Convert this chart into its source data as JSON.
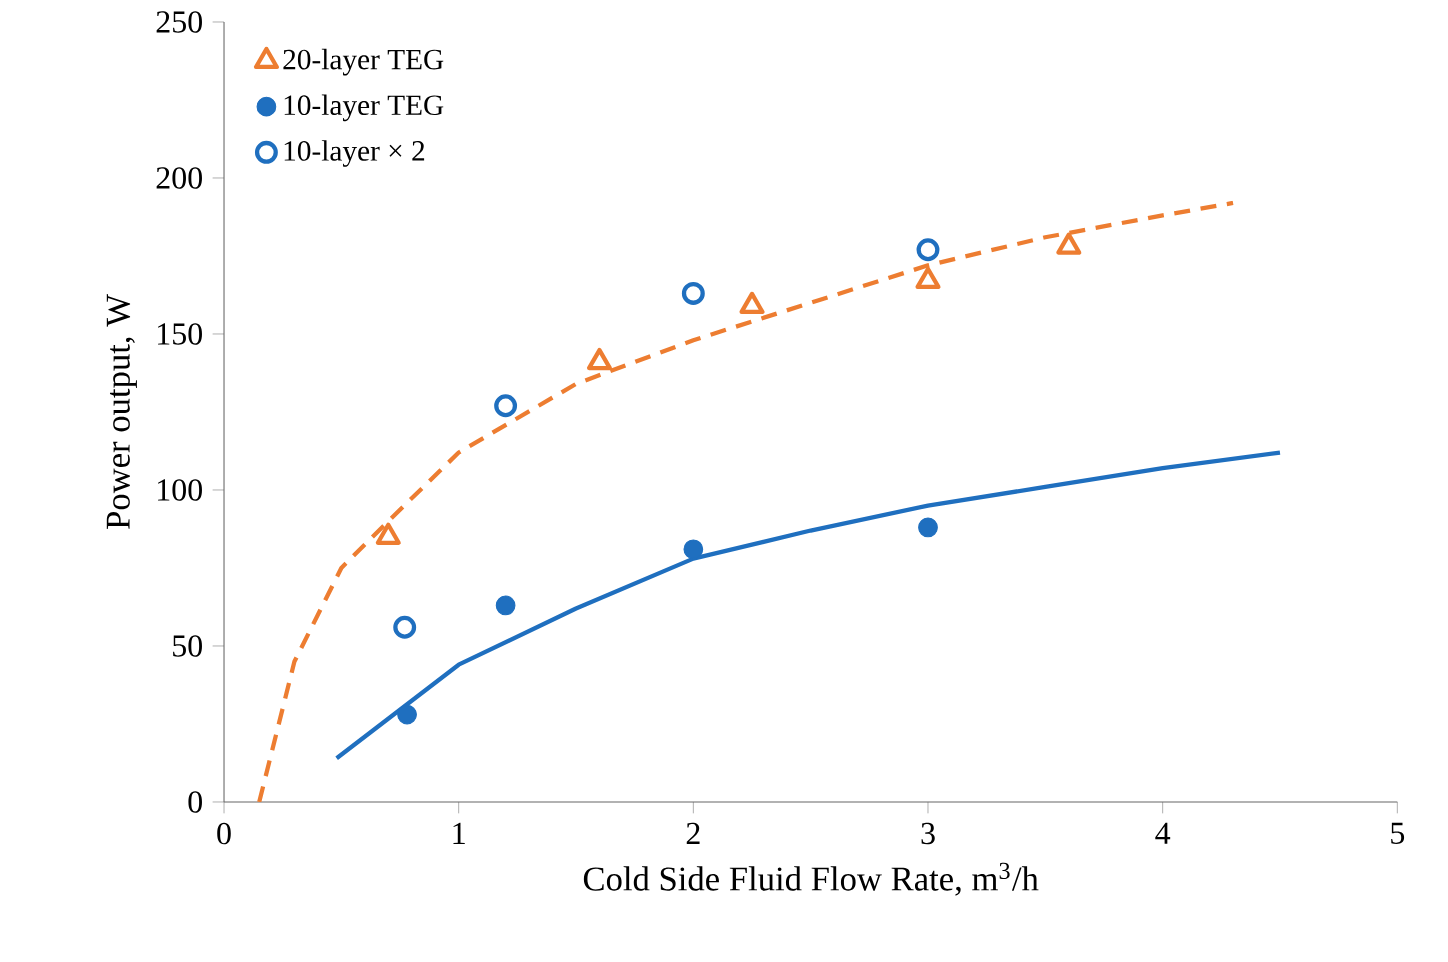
{
  "chart_data": {
    "type": "scatter",
    "xlabel": "Cold Side Fluid Flow Rate, m$^{3}$/h",
    "ylabel": "Power output, W",
    "xlim": [
      0,
      5
    ],
    "ylim": [
      0,
      250
    ],
    "xticks": [
      0,
      1,
      2,
      3,
      4,
      5
    ],
    "yticks": [
      0,
      50,
      100,
      150,
      200,
      250
    ],
    "grid": false,
    "legend": "top left",
    "series": [
      {
        "name": "20-layer TEG",
        "color": "#ed7d31",
        "marker": "triangle",
        "x": [
          0.7,
          1.6,
          2.25,
          3.0,
          3.6
        ],
        "values": [
          85,
          141,
          159,
          167,
          178
        ]
      },
      {
        "name": "10-layer TEG",
        "color": "#1f6fbf",
        "marker": "circle",
        "x": [
          0.78,
          1.2,
          2.0,
          3.0
        ],
        "values": [
          28,
          63,
          81,
          88
        ]
      },
      {
        "name": "10-layer × 2",
        "color": "#1f6fbf",
        "marker": "circle",
        "x": [
          0.77,
          1.2,
          2.0,
          3.0
        ],
        "values": [
          56,
          127,
          163,
          177
        ]
      },
      {
        "type": "line",
        "color": "#ed7d31",
        "line_style": "dashed",
        "marker": "none",
        "x": [
          0.15,
          0.3,
          0.5,
          0.7,
          1,
          1.5,
          2,
          2.5,
          3,
          3.5,
          4,
          4.3
        ],
        "values": [
          0,
          45,
          75,
          90,
          112,
          134,
          148,
          160,
          172,
          181,
          188,
          192
        ]
      },
      {
        "type": "line",
        "color": "#1f6fbf",
        "line_style": "solid",
        "marker": "none",
        "x": [
          0.48,
          1,
          1.5,
          2,
          2.5,
          3,
          3.5,
          4,
          4.5
        ],
        "values": [
          14,
          44,
          62,
          78,
          87,
          95,
          101,
          107,
          112
        ]
      }
    ]
  }
}
